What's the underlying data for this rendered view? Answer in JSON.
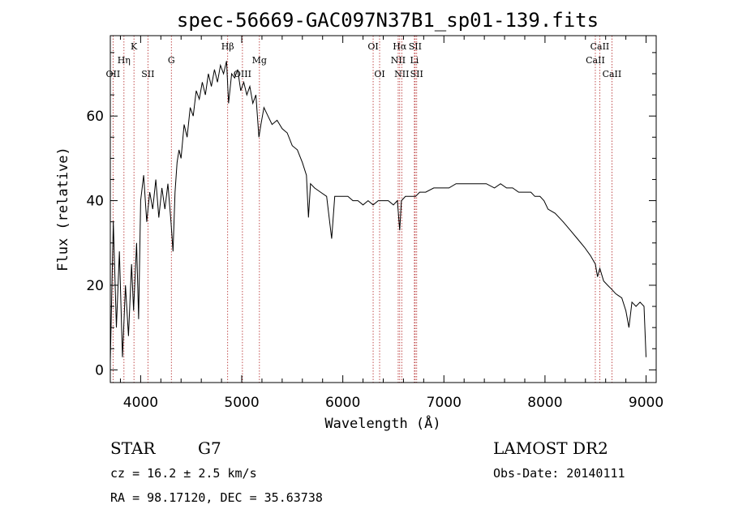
{
  "chart_data": {
    "type": "line",
    "title": "spec-56669-GAC097N37B1_sp01-139.fits",
    "xlabel": "Wavelength (Å)",
    "ylabel": "Flux (relative)",
    "xlim": [
      3700,
      9100
    ],
    "ylim": [
      -3,
      79
    ],
    "xticks": [
      4000,
      5000,
      6000,
      7000,
      8000,
      9000
    ],
    "yticks": [
      0,
      20,
      40,
      60
    ],
    "grid": false,
    "series": [
      {
        "color": "#000000",
        "points": [
          [
            3700,
            2
          ],
          [
            3730,
            35
          ],
          [
            3760,
            10
          ],
          [
            3790,
            28
          ],
          [
            3820,
            3
          ],
          [
            3850,
            20
          ],
          [
            3880,
            8
          ],
          [
            3910,
            25
          ],
          [
            3930,
            14
          ],
          [
            3960,
            30
          ],
          [
            3980,
            12
          ],
          [
            4000,
            40
          ],
          [
            4030,
            46
          ],
          [
            4060,
            35
          ],
          [
            4090,
            42
          ],
          [
            4120,
            38
          ],
          [
            4150,
            45
          ],
          [
            4180,
            36
          ],
          [
            4210,
            43
          ],
          [
            4240,
            38
          ],
          [
            4270,
            44
          ],
          [
            4300,
            35
          ],
          [
            4320,
            28
          ],
          [
            4340,
            42
          ],
          [
            4360,
            49
          ],
          [
            4380,
            52
          ],
          [
            4400,
            50
          ],
          [
            4430,
            58
          ],
          [
            4460,
            55
          ],
          [
            4490,
            62
          ],
          [
            4520,
            60
          ],
          [
            4550,
            66
          ],
          [
            4580,
            64
          ],
          [
            4610,
            68
          ],
          [
            4640,
            65
          ],
          [
            4670,
            70
          ],
          [
            4700,
            67
          ],
          [
            4730,
            71
          ],
          [
            4760,
            68
          ],
          [
            4790,
            72
          ],
          [
            4820,
            70
          ],
          [
            4850,
            73
          ],
          [
            4870,
            63
          ],
          [
            4900,
            70
          ],
          [
            4930,
            69
          ],
          [
            4960,
            71
          ],
          [
            4990,
            66
          ],
          [
            5020,
            68
          ],
          [
            5050,
            65
          ],
          [
            5080,
            67
          ],
          [
            5110,
            63
          ],
          [
            5140,
            65
          ],
          [
            5170,
            55
          ],
          [
            5190,
            58
          ],
          [
            5220,
            62
          ],
          [
            5260,
            60
          ],
          [
            5300,
            58
          ],
          [
            5350,
            59
          ],
          [
            5400,
            57
          ],
          [
            5450,
            56
          ],
          [
            5500,
            53
          ],
          [
            5550,
            52
          ],
          [
            5600,
            49
          ],
          [
            5640,
            46
          ],
          [
            5660,
            36
          ],
          [
            5680,
            44
          ],
          [
            5720,
            43
          ],
          [
            5780,
            42
          ],
          [
            5840,
            41
          ],
          [
            5890,
            31
          ],
          [
            5920,
            41
          ],
          [
            5980,
            41
          ],
          [
            6050,
            41
          ],
          [
            6100,
            40
          ],
          [
            6150,
            40
          ],
          [
            6200,
            39
          ],
          [
            6250,
            40
          ],
          [
            6300,
            39
          ],
          [
            6350,
            40
          ],
          [
            6400,
            40
          ],
          [
            6450,
            40
          ],
          [
            6500,
            39
          ],
          [
            6540,
            40
          ],
          [
            6563,
            33
          ],
          [
            6580,
            40
          ],
          [
            6620,
            41
          ],
          [
            6680,
            41
          ],
          [
            6720,
            41
          ],
          [
            6760,
            42
          ],
          [
            6820,
            42
          ],
          [
            6900,
            43
          ],
          [
            6980,
            43
          ],
          [
            7050,
            43
          ],
          [
            7120,
            44
          ],
          [
            7200,
            44
          ],
          [
            7280,
            44
          ],
          [
            7350,
            44
          ],
          [
            7420,
            44
          ],
          [
            7500,
            43
          ],
          [
            7560,
            44
          ],
          [
            7620,
            43
          ],
          [
            7680,
            43
          ],
          [
            7740,
            42
          ],
          [
            7800,
            42
          ],
          [
            7860,
            42
          ],
          [
            7900,
            41
          ],
          [
            7950,
            41
          ],
          [
            7990,
            40
          ],
          [
            8030,
            38
          ],
          [
            8100,
            37
          ],
          [
            8180,
            35
          ],
          [
            8250,
            33
          ],
          [
            8320,
            31
          ],
          [
            8390,
            29
          ],
          [
            8450,
            27
          ],
          [
            8498,
            25
          ],
          [
            8520,
            22
          ],
          [
            8542,
            24
          ],
          [
            8580,
            21
          ],
          [
            8620,
            20
          ],
          [
            8662,
            19
          ],
          [
            8700,
            18
          ],
          [
            8760,
            17
          ],
          [
            8800,
            14
          ],
          [
            8830,
            10
          ],
          [
            8860,
            16
          ],
          [
            8900,
            15
          ],
          [
            8940,
            16
          ],
          [
            8980,
            15
          ],
          [
            9000,
            3
          ]
        ]
      }
    ],
    "lines": [
      {
        "x": 3727,
        "label": "OII",
        "row": 3
      },
      {
        "x": 3835,
        "label": "Hη",
        "row": 2
      },
      {
        "x": 3934,
        "label": "K",
        "row": 1
      },
      {
        "x": 4072,
        "label": "SII",
        "row": 3
      },
      {
        "x": 4304,
        "label": "G",
        "row": 2
      },
      {
        "x": 4861,
        "label": "Hβ",
        "row": 1
      },
      {
        "x": 5007,
        "label": "OIII",
        "row": 3
      },
      {
        "x": 5175,
        "label": "Mg",
        "row": 2
      },
      {
        "x": 6300,
        "label": "OI",
        "row": 1
      },
      {
        "x": 6364,
        "label": "OI",
        "row": 3
      },
      {
        "x": 6548,
        "label": "NII",
        "row": 2
      },
      {
        "x": 6563,
        "label": "Hα",
        "row": 1
      },
      {
        "x": 6583,
        "label": "NII",
        "row": 3
      },
      {
        "x": 6708,
        "label": "Li",
        "row": 2
      },
      {
        "x": 6716,
        "label": "SII",
        "row": 1
      },
      {
        "x": 6731,
        "label": "SII",
        "row": 3
      },
      {
        "x": 8498,
        "label": "CaII",
        "row": 2
      },
      {
        "x": 8542,
        "label": "CaII",
        "row": 1
      },
      {
        "x": 8662,
        "label": "CaII",
        "row": 3
      }
    ]
  },
  "info": {
    "object_type": "STAR",
    "subclass": "G7",
    "survey": "LAMOST DR2",
    "redshift": "cz = 16.2 ± 2.5 km/s",
    "obs_date": "Obs-Date: 20140111",
    "coords": "RA =  98.17120, DEC =  35.63738"
  }
}
